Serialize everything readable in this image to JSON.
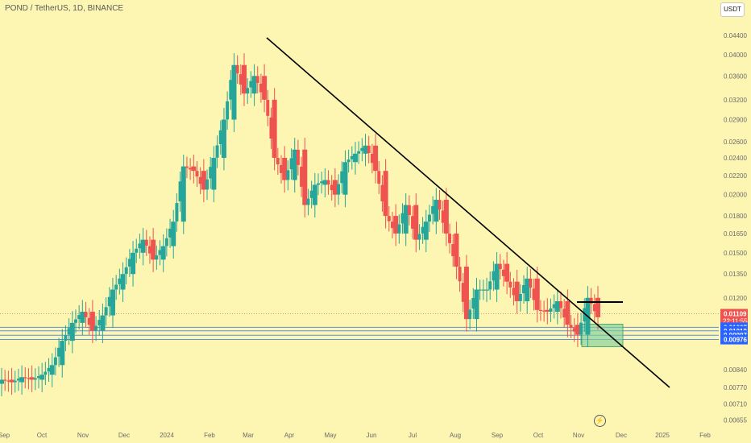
{
  "header": {
    "symbol_title": "POND / TetherUS, 1D, BINANCE",
    "currency": "USDT"
  },
  "colors": {
    "background": "#fdf5b2",
    "up": "#26a69a",
    "down": "#ef5350",
    "trendline": "#000000",
    "level_line": "#5a8ee6",
    "zone": "#7fcf9c",
    "current_price_tag": "#ef5350",
    "level_tag": "#2962ff"
  },
  "icons": {
    "replay": "lightning-icon"
  },
  "chart_data": {
    "type": "candlestick",
    "x_axis": {
      "ticks": [
        "Sep",
        "Oct",
        "Nov",
        "Dec",
        "2024",
        "Feb",
        "Mar",
        "Apr",
        "May",
        "Jun",
        "Jul",
        "Aug",
        "Sep",
        "Oct",
        "Nov",
        "Dec",
        "2025",
        "Feb"
      ]
    },
    "y_axis": {
      "scale": "log",
      "ticks": [
        "0.04400",
        "0.04000",
        "0.03600",
        "0.03200",
        "0.02900",
        "0.02600",
        "0.02400",
        "0.02200",
        "0.02000",
        "0.01800",
        "0.01650",
        "0.01500",
        "0.01350",
        "0.01200",
        "0.00840",
        "0.00770",
        "0.00710",
        "0.00655"
      ]
    },
    "price_series": {
      "name": "POND/USDT",
      "points": [
        [
          "Sep",
          0.008
        ],
        [
          "Sep",
          0.0079
        ],
        [
          "Sep",
          0.0081
        ],
        [
          "Oct",
          0.008
        ],
        [
          "Oct",
          0.0082
        ],
        [
          "Oct",
          0.0086
        ],
        [
          "Nov",
          0.0097
        ],
        [
          "Nov",
          0.0106
        ],
        [
          "Nov",
          0.0112
        ],
        [
          "Nov",
          0.0102
        ],
        [
          "Dec",
          0.011
        ],
        [
          "Dec",
          0.0125
        ],
        [
          "Dec",
          0.0135
        ],
        [
          "2024",
          0.015
        ],
        [
          "2024",
          0.016
        ],
        [
          "2024",
          0.0145
        ],
        [
          "2024",
          0.0155
        ],
        [
          "Feb",
          0.0175
        ],
        [
          "Feb",
          0.023
        ],
        [
          "Feb",
          0.0225
        ],
        [
          "Feb",
          0.0205
        ],
        [
          "Feb",
          0.024
        ],
        [
          "Mar",
          0.029
        ],
        [
          "Mar",
          0.038
        ],
        [
          "Mar",
          0.033
        ],
        [
          "Mar",
          0.036
        ],
        [
          "Apr",
          0.032
        ],
        [
          "Apr",
          0.024
        ],
        [
          "Apr",
          0.0215
        ],
        [
          "Apr",
          0.025
        ],
        [
          "May",
          0.019
        ],
        [
          "May",
          0.021
        ],
        [
          "May",
          0.0215
        ],
        [
          "May",
          0.02
        ],
        [
          "May",
          0.0235
        ],
        [
          "Jun",
          0.0245
        ],
        [
          "Jun",
          0.0255
        ],
        [
          "Jun",
          0.0225
        ],
        [
          "Jun",
          0.018
        ],
        [
          "Jul",
          0.0165
        ],
        [
          "Jul",
          0.019
        ],
        [
          "Jul",
          0.016
        ],
        [
          "Jul",
          0.0175
        ],
        [
          "Aug",
          0.0195
        ],
        [
          "Aug",
          0.0165
        ],
        [
          "Aug",
          0.014
        ],
        [
          "Aug",
          0.0108
        ],
        [
          "Aug",
          0.0125
        ],
        [
          "Sep",
          0.0125
        ],
        [
          "Sep",
          0.0142
        ],
        [
          "Sep",
          0.013
        ],
        [
          "Sep",
          0.0118
        ],
        [
          "Oct",
          0.0132
        ],
        [
          "Oct",
          0.0113
        ],
        [
          "Oct",
          0.0112
        ],
        [
          "Oct",
          0.0118
        ],
        [
          "Nov",
          0.0105
        ],
        [
          "Nov",
          0.01
        ],
        [
          "Nov",
          0.012
        ],
        [
          "Nov",
          0.0109
        ]
      ]
    },
    "trendline": {
      "from": [
        "Mar",
        0.0435
      ],
      "to": [
        "Dec",
        0.0077
      ]
    },
    "resistance_line": {
      "from": [
        "Nov",
        0.01175
      ],
      "to": [
        "Dec",
        0.01175
      ]
    },
    "support_zone": {
      "top": 0.01037,
      "bottom": 0.00976,
      "x_from": "Nov",
      "x_to": "Dec"
    },
    "horizontal_levels": [
      0.01037,
      0.01019,
      0.00997,
      0.00976
    ],
    "price_labels": {
      "current": "0.01109",
      "countdown": "22:11:55",
      "levels": [
        "0.01037",
        "0.01019",
        "0.00997",
        "0.00976"
      ]
    }
  }
}
